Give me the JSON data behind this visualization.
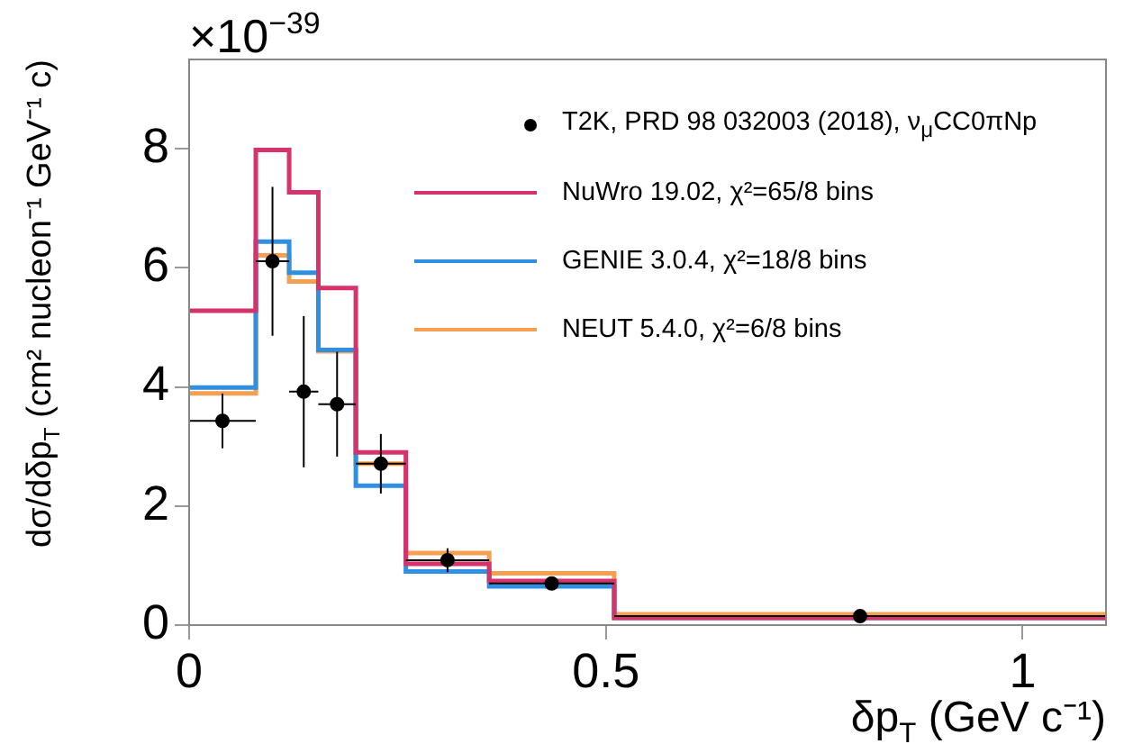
{
  "chart_data": {
    "type": "histogram",
    "xlabel": "δp$_{T}$ (GeV c⁻¹)",
    "ylabel": "dσ/dδp$_{T}$ (cm² nucleon⁻¹ GeV⁻¹ c)",
    "annotations": [
      "×10$^{−39}$"
    ],
    "bins": [
      0,
      0.08,
      0.12,
      0.155,
      0.2,
      0.26,
      0.36,
      0.51,
      1.1
    ],
    "xlim": [
      0,
      1.1
    ],
    "ylim": [
      0,
      9.5
    ],
    "xticks": [
      0,
      0.5,
      1
    ],
    "yticks": [
      0,
      2,
      4,
      6,
      8
    ],
    "legend": "top right",
    "series": [
      {
        "name": "T2K, PRD 98 032003 (2018), ν$_{μ}$CC0πNp",
        "type": "scatter",
        "marker": "circle",
        "color": "#000000",
        "x": [
          0.04,
          0.1,
          0.1375,
          0.1775,
          0.23,
          0.31,
          0.435,
          0.805
        ],
        "values": [
          3.43,
          6.11,
          3.92,
          3.71,
          2.71,
          1.09,
          0.7,
          0.15
        ],
        "errors": [
          0.46,
          1.25,
          1.27,
          0.88,
          0.5,
          0.2,
          0.1,
          0.05
        ],
        "xerrors": [
          0.04,
          0.02,
          0.0175,
          0.0225,
          0.03,
          0.05,
          0.075,
          0.295
        ]
      },
      {
        "name": "NuWro 19.02, χ²=65/8 bins",
        "color": "#d6336c",
        "values": [
          5.28,
          7.98,
          7.27,
          5.66,
          2.9,
          1.03,
          0.74,
          0.12
        ]
      },
      {
        "name": "GENIE 3.0.4, χ²=18/8 bins",
        "color": "#2f8fe0",
        "values": [
          3.99,
          6.44,
          5.92,
          4.62,
          2.34,
          0.9,
          0.65,
          0.12
        ]
      },
      {
        "name": "NEUT 5.4.0, χ²=6/8 bins",
        "color": "#f5a050",
        "values": [
          3.89,
          6.21,
          5.77,
          4.6,
          2.71,
          1.21,
          0.87,
          0.18
        ]
      }
    ]
  }
}
